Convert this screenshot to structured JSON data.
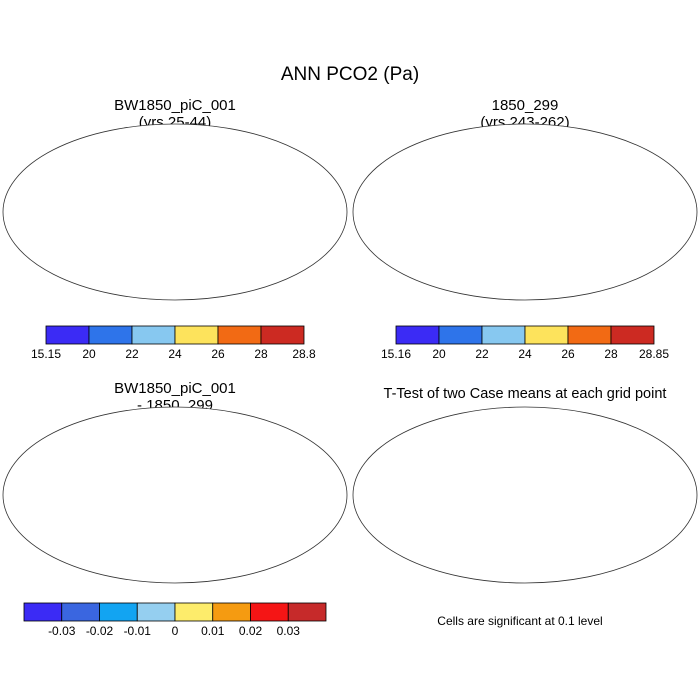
{
  "figure": {
    "title": "ANN PCO2 (Pa)",
    "note": "Cells are significant at 0.1 level"
  },
  "chart_data": [
    {
      "type": "heatmap",
      "panel": "top-left",
      "title_line1": "BW1850_piC_001",
      "title_line2": "(yrs 25-44)",
      "projection": "global map (Robinson)",
      "colorbar": {
        "levels": [
          "15.15",
          "20",
          "22",
          "24",
          "26",
          "28",
          "28.8"
        ],
        "colors": [
          "#3b2bf5",
          "#2e74ea",
          "#87c8f0",
          "#fde35c",
          "#f26a14",
          "#cc2a22"
        ]
      }
    },
    {
      "type": "heatmap",
      "panel": "top-right",
      "title_line1": "1850_299",
      "title_line2": "(yrs 243-262)",
      "projection": "global map (Robinson)",
      "colorbar": {
        "levels": [
          "15.16",
          "20",
          "22",
          "24",
          "26",
          "28",
          "28.85"
        ],
        "colors": [
          "#3b2bf5",
          "#2e74ea",
          "#87c8f0",
          "#fde35c",
          "#f26a14",
          "#cc2a22"
        ]
      }
    },
    {
      "type": "heatmap",
      "panel": "bottom-left",
      "title_line1": "BW1850_piC_001",
      "title_line2": "- 1850_299",
      "projection": "global map (Robinson)",
      "colorbar": {
        "levels": [
          "-0.03",
          "-0.02",
          "-0.01",
          "0",
          "0.01",
          "0.02",
          "0.03"
        ],
        "colors": [
          "#3b2bf5",
          "#3a66e0",
          "#12a4f2",
          "#95cff0",
          "#fdec6b",
          "#f59b11",
          "#f51515",
          "#c62a2a"
        ]
      }
    },
    {
      "type": "heatmap",
      "panel": "bottom-right",
      "title_line1": "T-Test of two Case means at each grid point",
      "projection": "global map (Robinson)",
      "significant_color": "#ff0000"
    }
  ]
}
